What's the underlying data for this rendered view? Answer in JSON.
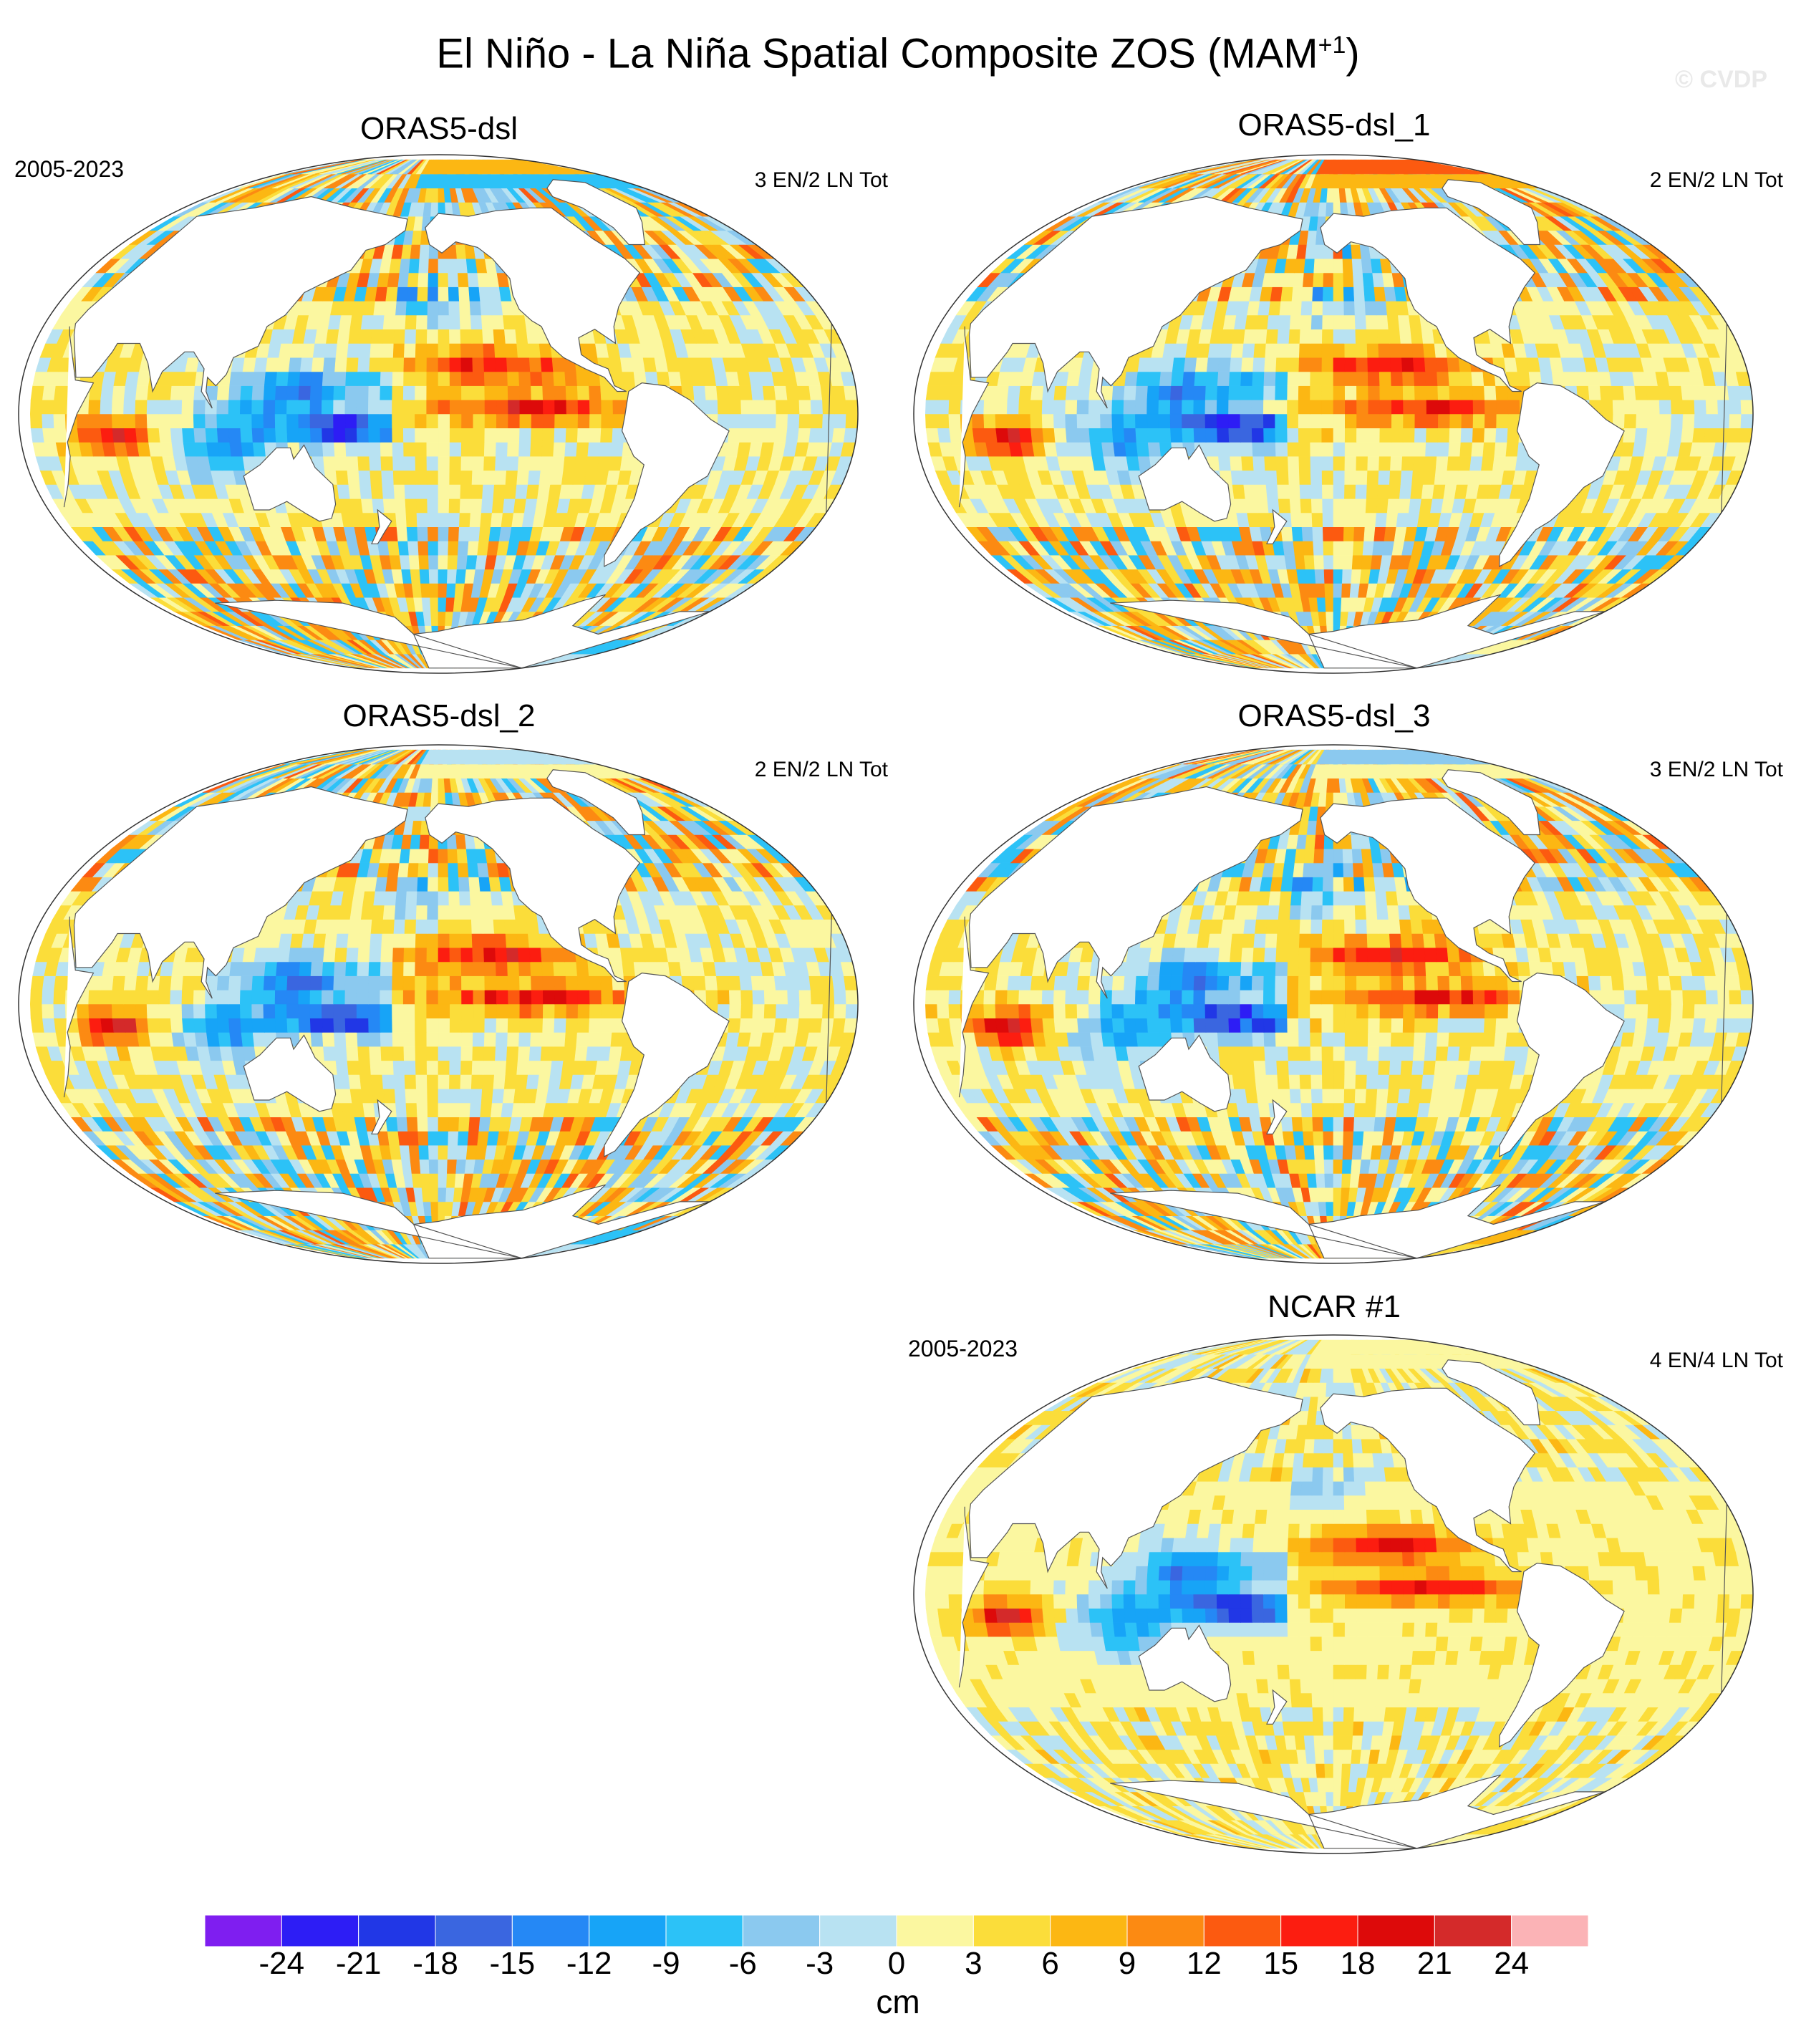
{
  "title": "El Niño - La Niña Spatial Composite ZOS (MAM",
  "title_superscript": "+1",
  "title_close": ")",
  "watermark": "© CVDP",
  "panels": [
    {
      "name": "ORAS5-dsl",
      "period": "2005-2023",
      "counts": "3 EN/2 LN Tot"
    },
    {
      "name": "ORAS5-dsl_1",
      "period": "",
      "counts": "2 EN/2 LN Tot"
    },
    {
      "name": "ORAS5-dsl_2",
      "period": "",
      "counts": "2 EN/2 LN Tot"
    },
    {
      "name": "ORAS5-dsl_3",
      "period": "",
      "counts": "3 EN/2 LN Tot"
    },
    {
      "name": "NCAR #1",
      "period": "2005-2023",
      "counts": "4 EN/4 LN Tot"
    }
  ],
  "colorbar": {
    "units": "cm",
    "labels": [
      "-24",
      "-21",
      "-18",
      "-15",
      "-12",
      "-9",
      "-6",
      "-3",
      "0",
      "3",
      "6",
      "9",
      "12",
      "15",
      "18",
      "21",
      "24"
    ],
    "colors": [
      "#7f1ef0",
      "#2d1df5",
      "#2137e6",
      "#3a66e0",
      "#2588f5",
      "#17a4f7",
      "#2cc2f7",
      "#8bc9ef",
      "#b8e2f2",
      "#fbf7a0",
      "#fbdd3a",
      "#fcb713",
      "#fc8a12",
      "#fc5a10",
      "#fc1d10",
      "#dd0a0a",
      "#d42a2a",
      "#fbb3b6"
    ]
  }
}
